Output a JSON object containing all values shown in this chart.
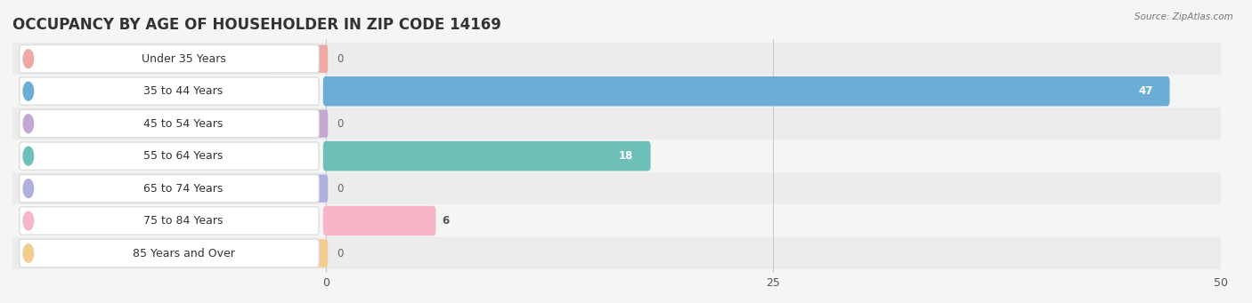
{
  "title": "OCCUPANCY BY AGE OF HOUSEHOLDER IN ZIP CODE 14169",
  "source": "Source: ZipAtlas.com",
  "categories": [
    "Under 35 Years",
    "35 to 44 Years",
    "45 to 54 Years",
    "55 to 64 Years",
    "65 to 74 Years",
    "75 to 84 Years",
    "85 Years and Over"
  ],
  "values": [
    0,
    47,
    0,
    18,
    0,
    6,
    0
  ],
  "bar_colors": [
    "#f0a8a4",
    "#6aaed6",
    "#c3a8d1",
    "#6dbfb8",
    "#b0b0e0",
    "#f7b6c8",
    "#f5cc90"
  ],
  "background_color": "#f5f5f5",
  "xlim": [
    0,
    50
  ],
  "xticks": [
    0,
    25,
    50
  ],
  "title_fontsize": 12,
  "label_fontsize": 9,
  "value_fontsize": 8.5,
  "bar_height": 0.62,
  "figsize": [
    14.06,
    3.41
  ],
  "dpi": 100
}
